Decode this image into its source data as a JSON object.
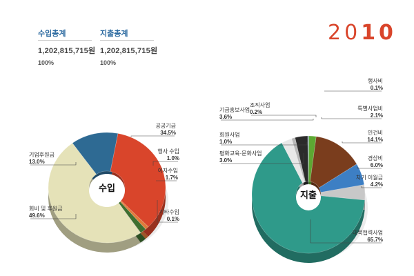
{
  "summary": {
    "income": {
      "label": "수입총계",
      "amount": "1,202,815,715원",
      "pct": "100%"
    },
    "expense": {
      "label": "지출총계",
      "amount": "1,202,815,715원",
      "pct": "100%"
    }
  },
  "year": {
    "prefix": "20",
    "suffix": "10"
  },
  "chart_data": [
    {
      "type": "pie",
      "center_label": "수입",
      "slices": [
        {
          "name": "공공기금",
          "value": 34.5,
          "value_label": "34.5%",
          "color": "#d9452b"
        },
        {
          "name": "행사 수입",
          "value": 1.0,
          "value_label": "1.0%",
          "color": "#e07b39"
        },
        {
          "name": "이자수입",
          "value": 1.7,
          "value_label": "1.7%",
          "color": "#3e6f2f"
        },
        {
          "name": "기타수입",
          "value": 0.1,
          "value_label": "0.1%",
          "color": "#8a8a6a"
        },
        {
          "name": "회비 및 후원금",
          "value": 49.6,
          "value_label": "49.6%",
          "color": "#e5e2b8"
        },
        {
          "name": "기업후원금",
          "value": 13.0,
          "value_label": "13.0%",
          "color": "#2e6a93"
        }
      ]
    },
    {
      "type": "pie",
      "center_label": "지출",
      "slices": [
        {
          "name": "행사비",
          "value": 0.1,
          "value_label": "0.1%",
          "color": "#9a9a9a"
        },
        {
          "name": "특별사업비",
          "value": 2.1,
          "value_label": "2.1%",
          "color": "#5da832"
        },
        {
          "name": "인건비",
          "value": 14.1,
          "value_label": "14.1%",
          "color": "#7a3d1d"
        },
        {
          "name": "경상비",
          "value": 6.0,
          "value_label": "6.0%",
          "color": "#3d7fc4"
        },
        {
          "name": "차기 이월금",
          "value": 4.2,
          "value_label": "4.2%",
          "color": "#c8c8c8"
        },
        {
          "name": "대북협력사업",
          "value": 65.7,
          "value_label": "65.7%",
          "color": "#2f9a8a"
        },
        {
          "name": "평화교육·문화사업",
          "value": 3.0,
          "value_label": "3.0%",
          "color": "#e8e8e8"
        },
        {
          "name": "회원사업",
          "value": 1.0,
          "value_label": "1.0%",
          "color": "#b8b8b8"
        },
        {
          "name": "기금홍보사업",
          "value": 3.6,
          "value_label": "3.6%",
          "color": "#2b2b2b"
        },
        {
          "name": "조직사업",
          "value": 0.2,
          "value_label": "0.2%",
          "color": "#4f7fa8"
        }
      ]
    }
  ]
}
